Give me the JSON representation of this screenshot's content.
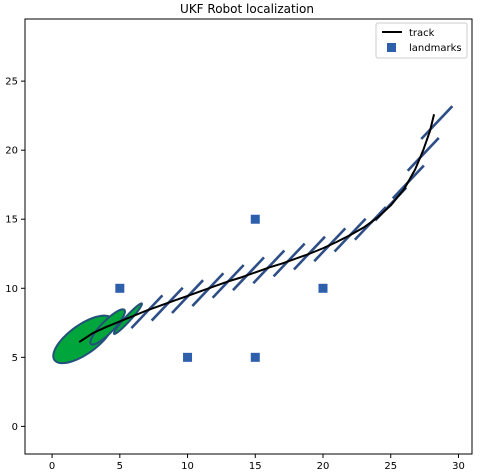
{
  "chart_data": {
    "type": "scatter",
    "title": "UKF Robot localization",
    "xlabel": "",
    "ylabel": "",
    "xlim": [
      -2,
      31
    ],
    "ylim": [
      -2,
      29.5
    ],
    "xticks": [
      0,
      5,
      10,
      15,
      20,
      25,
      30
    ],
    "yticks": [
      0,
      5,
      10,
      15,
      20,
      25
    ],
    "grid": false,
    "legend": {
      "placement": "top-right",
      "entries": [
        {
          "label": "track",
          "kind": "line",
          "color": "#000000"
        },
        {
          "label": "landmarks",
          "kind": "square",
          "color": "#2e5fad"
        }
      ]
    },
    "series": [
      {
        "name": "track",
        "kind": "line",
        "color": "#000000",
        "x": [
          2.0,
          3.0,
          4.0,
          5.0,
          6.0,
          7.0,
          8.0,
          9.0,
          10.0,
          11.0,
          12.0,
          13.0,
          14.0,
          15.0,
          16.0,
          17.0,
          18.0,
          19.0,
          20.0,
          21.0,
          22.0,
          23.0,
          24.0,
          25.0,
          26.0,
          26.8,
          27.4,
          27.9,
          28.2
        ],
        "y": [
          6.1,
          6.75,
          7.2,
          7.6,
          8.0,
          8.4,
          8.75,
          9.1,
          9.45,
          9.8,
          10.15,
          10.5,
          10.8,
          11.15,
          11.5,
          11.8,
          12.15,
          12.5,
          12.9,
          13.35,
          13.85,
          14.4,
          15.1,
          16.0,
          17.2,
          18.6,
          20.0,
          21.4,
          22.6
        ]
      },
      {
        "name": "landmarks",
        "kind": "square",
        "color": "#2e5fad",
        "x": [
          5,
          10,
          15,
          15,
          20
        ],
        "y": [
          10,
          5,
          15,
          5,
          10
        ]
      }
    ],
    "prior_ellipses": {
      "fill": "#00a53c",
      "edge": "#24517a",
      "items": [
        {
          "cx": 2.3,
          "cy": 6.3,
          "semi_major": 2.6,
          "semi_minor": 1.05,
          "angle_deg": 35
        },
        {
          "cx": 4.1,
          "cy": 7.2,
          "semi_major": 1.75,
          "semi_minor": 0.45,
          "angle_deg": 45
        },
        {
          "cx": 5.6,
          "cy": 7.8,
          "semi_major": 1.5,
          "semi_minor": 0.2,
          "angle_deg": 47
        }
      ]
    },
    "posterior_ellipses": {
      "color": "#2e4e86",
      "half_length": 1.65,
      "items": [
        {
          "cx": 7.0,
          "cy": 8.3,
          "angle_deg": 46
        },
        {
          "cx": 8.5,
          "cy": 8.85,
          "angle_deg": 46
        },
        {
          "cx": 10.0,
          "cy": 9.4,
          "angle_deg": 46
        },
        {
          "cx": 11.5,
          "cy": 9.9,
          "angle_deg": 46
        },
        {
          "cx": 13.0,
          "cy": 10.5,
          "angle_deg": 46
        },
        {
          "cx": 14.5,
          "cy": 11.05,
          "angle_deg": 46
        },
        {
          "cx": 16.0,
          "cy": 11.55,
          "angle_deg": 46
        },
        {
          "cx": 17.5,
          "cy": 12.05,
          "angle_deg": 46
        },
        {
          "cx": 19.0,
          "cy": 12.55,
          "angle_deg": 46
        },
        {
          "cx": 20.5,
          "cy": 13.15,
          "angle_deg": 46
        },
        {
          "cx": 22.0,
          "cy": 13.85,
          "angle_deg": 46
        },
        {
          "cx": 23.5,
          "cy": 14.7,
          "angle_deg": 46
        },
        {
          "cx": 25.0,
          "cy": 16.1,
          "angle_deg": 46
        },
        {
          "cx": 26.3,
          "cy": 17.7,
          "angle_deg": 46
        },
        {
          "cx": 27.4,
          "cy": 19.7,
          "angle_deg": 46
        },
        {
          "cx": 28.4,
          "cy": 22.0,
          "angle_deg": 46
        }
      ]
    }
  }
}
